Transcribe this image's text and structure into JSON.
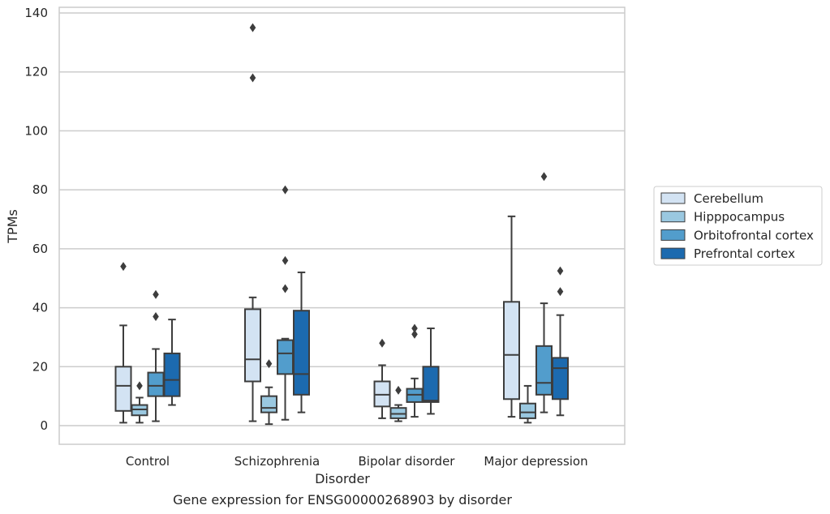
{
  "caption": "Gene expression for ENSG00000268903 by disorder",
  "chart_data": {
    "type": "boxplot",
    "xlabel": "Disorder",
    "ylabel": "TPMs",
    "ylim": [
      -6,
      141
    ],
    "yticks": [
      0,
      20,
      40,
      60,
      80,
      100,
      120,
      140
    ],
    "grid": "horizontal",
    "legend_position": "right",
    "categories": [
      "Control",
      "Schizophrenia",
      "Bipolar disorder",
      "Major depression"
    ],
    "series": [
      {
        "name": "Cerebellum",
        "color": "#d3e3f3",
        "boxes": [
          {
            "whislo": 1,
            "q1": 5,
            "med": 13.5,
            "q3": 20,
            "whishi": 34,
            "fliers": [
              54
            ]
          },
          {
            "whislo": 1.5,
            "q1": 15,
            "med": 22.5,
            "q3": 39.5,
            "whishi": 43.5,
            "fliers": [
              118,
              135
            ]
          },
          {
            "whislo": 2.5,
            "q1": 6.5,
            "med": 10.5,
            "q3": 15,
            "whishi": 20.5,
            "fliers": [
              28
            ]
          },
          {
            "whislo": 3,
            "q1": 9,
            "med": 24,
            "q3": 42,
            "whishi": 71,
            "fliers": []
          }
        ]
      },
      {
        "name": "Hipppocampus",
        "color": "#9ac8e0",
        "boxes": [
          {
            "whislo": 1,
            "q1": 3.5,
            "med": 5.5,
            "q3": 7,
            "whishi": 9.5,
            "fliers": [
              13.5
            ]
          },
          {
            "whislo": 0.5,
            "q1": 4.5,
            "med": 6,
            "q3": 10,
            "whishi": 13,
            "fliers": [
              21
            ]
          },
          {
            "whislo": 1.5,
            "q1": 2.5,
            "med": 4,
            "q3": 6,
            "whishi": 7,
            "fliers": [
              12
            ]
          },
          {
            "whislo": 1,
            "q1": 2.5,
            "med": 4.5,
            "q3": 7.5,
            "whishi": 13.5,
            "fliers": []
          }
        ]
      },
      {
        "name": "Orbitofrontal cortex",
        "color": "#529dcc",
        "boxes": [
          {
            "whislo": 1.5,
            "q1": 10,
            "med": 13.5,
            "q3": 18,
            "whishi": 26,
            "fliers": [
              37,
              44.5
            ]
          },
          {
            "whislo": 2,
            "q1": 17.5,
            "med": 24.5,
            "q3": 29,
            "whishi": 29.5,
            "fliers": [
              46.5,
              56,
              80
            ]
          },
          {
            "whislo": 3,
            "q1": 8,
            "med": 10.5,
            "q3": 12.5,
            "whishi": 16,
            "fliers": [
              31,
              33
            ]
          },
          {
            "whislo": 4.5,
            "q1": 10.5,
            "med": 14.5,
            "q3": 27,
            "whishi": 41.5,
            "fliers": [
              84.5
            ]
          }
        ]
      },
      {
        "name": "Prefrontal cortex",
        "color": "#1c6aaf",
        "boxes": [
          {
            "whislo": 7,
            "q1": 10,
            "med": 15.5,
            "q3": 24.5,
            "whishi": 36,
            "fliers": []
          },
          {
            "whislo": 4.5,
            "q1": 10.5,
            "med": 17.5,
            "q3": 39,
            "whishi": 52,
            "fliers": []
          },
          {
            "whislo": 4,
            "q1": 8,
            "med": 8.5,
            "q3": 20,
            "whishi": 33,
            "fliers": []
          },
          {
            "whislo": 3.5,
            "q1": 9,
            "med": 19.5,
            "q3": 23,
            "whishi": 37.5,
            "fliers": [
              45.5,
              52.5
            ]
          }
        ]
      }
    ]
  }
}
